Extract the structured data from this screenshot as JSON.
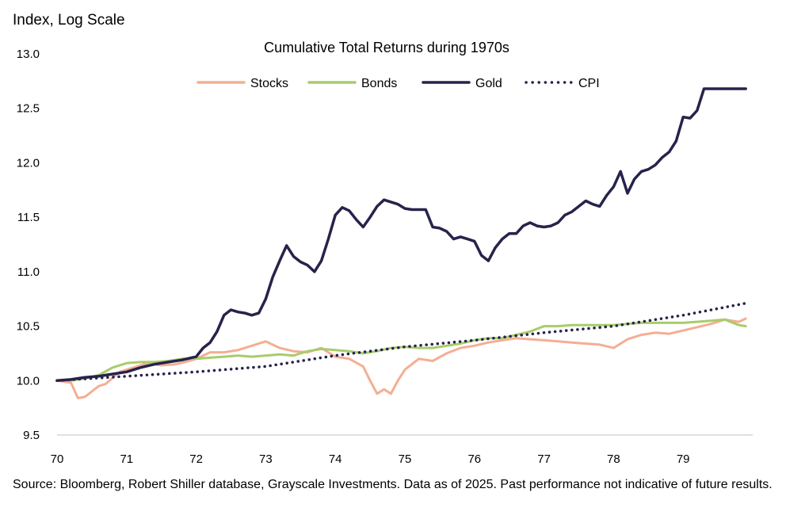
{
  "chart_data": {
    "type": "line",
    "title": "Cumulative Total Returns during 1970s",
    "ylabel": "Index, Log Scale",
    "xlabel": "",
    "log_scale": true,
    "ylim": [
      9.5,
      13.0
    ],
    "xlim": [
      1970,
      1980
    ],
    "y_ticks": [
      "9.5",
      "10.0",
      "10.5",
      "11.0",
      "11.5",
      "12.0",
      "12.5",
      "13.0"
    ],
    "x_ticks": [
      "70",
      "71",
      "72",
      "73",
      "74",
      "75",
      "76",
      "77",
      "78",
      "79"
    ],
    "grid": false,
    "legend": "top",
    "series": [
      {
        "name": "Stocks",
        "color": "#f4ae93",
        "style": "solid",
        "x": [
          1970.0,
          1970.1,
          1970.2,
          1970.3,
          1970.4,
          1970.5,
          1970.6,
          1970.7,
          1970.9,
          1971.0,
          1971.1,
          1971.3,
          1971.5,
          1971.7,
          1971.9,
          1972.0,
          1972.2,
          1972.4,
          1972.6,
          1972.8,
          1973.0,
          1973.2,
          1973.4,
          1973.6,
          1973.8,
          1974.0,
          1974.2,
          1974.4,
          1974.5,
          1974.6,
          1974.7,
          1974.8,
          1974.9,
          1975.0,
          1975.1,
          1975.2,
          1975.4,
          1975.6,
          1975.8,
          1976.0,
          1976.2,
          1976.4,
          1976.6,
          1976.8,
          1977.0,
          1977.2,
          1977.4,
          1977.6,
          1977.8,
          1978.0,
          1978.2,
          1978.4,
          1978.6,
          1978.8,
          1979.0,
          1979.2,
          1979.4,
          1979.6,
          1979.8,
          1979.9
        ],
        "values": [
          10.0,
          9.99,
          9.98,
          9.84,
          9.85,
          9.9,
          9.95,
          9.97,
          10.08,
          10.1,
          10.12,
          10.16,
          10.14,
          10.15,
          10.18,
          10.2,
          10.26,
          10.26,
          10.28,
          10.32,
          10.36,
          10.3,
          10.27,
          10.26,
          10.3,
          10.22,
          10.2,
          10.13,
          10.0,
          9.88,
          9.92,
          9.88,
          10.0,
          10.1,
          10.15,
          10.2,
          10.18,
          10.25,
          10.3,
          10.32,
          10.35,
          10.37,
          10.39,
          10.38,
          10.37,
          10.36,
          10.35,
          10.34,
          10.33,
          10.3,
          10.38,
          10.42,
          10.44,
          10.43,
          10.46,
          10.49,
          10.52,
          10.56,
          10.54,
          10.57
        ]
      },
      {
        "name": "Bonds",
        "color": "#a8cc6b",
        "style": "solid",
        "x": [
          1970.0,
          1970.2,
          1970.4,
          1970.6,
          1970.8,
          1971.0,
          1971.2,
          1971.4,
          1971.6,
          1971.8,
          1972.0,
          1972.2,
          1972.4,
          1972.6,
          1972.8,
          1973.0,
          1973.2,
          1973.4,
          1973.6,
          1973.8,
          1974.0,
          1974.2,
          1974.4,
          1974.6,
          1974.8,
          1975.0,
          1975.2,
          1975.4,
          1975.6,
          1975.8,
          1976.0,
          1976.2,
          1976.4,
          1976.6,
          1976.8,
          1977.0,
          1977.2,
          1977.4,
          1977.6,
          1977.8,
          1978.0,
          1978.2,
          1978.4,
          1978.6,
          1978.8,
          1979.0,
          1979.2,
          1979.4,
          1979.6,
          1979.8,
          1979.9
        ],
        "values": [
          10.0,
          10.0,
          10.02,
          10.05,
          10.12,
          10.16,
          10.17,
          10.17,
          10.18,
          10.2,
          10.2,
          10.21,
          10.22,
          10.23,
          10.22,
          10.23,
          10.24,
          10.23,
          10.27,
          10.29,
          10.28,
          10.27,
          10.25,
          10.27,
          10.3,
          10.31,
          10.3,
          10.3,
          10.32,
          10.34,
          10.37,
          10.39,
          10.39,
          10.42,
          10.45,
          10.5,
          10.5,
          10.51,
          10.51,
          10.51,
          10.51,
          10.52,
          10.53,
          10.53,
          10.53,
          10.53,
          10.54,
          10.55,
          10.56,
          10.51,
          10.5
        ]
      },
      {
        "name": "Gold",
        "color": "#26234b",
        "style": "solid",
        "x": [
          1970.0,
          1970.2,
          1970.4,
          1970.6,
          1970.8,
          1971.0,
          1971.2,
          1971.4,
          1971.6,
          1971.8,
          1972.0,
          1972.1,
          1972.2,
          1972.3,
          1972.4,
          1972.5,
          1972.6,
          1972.7,
          1972.8,
          1972.9,
          1973.0,
          1973.1,
          1973.2,
          1973.3,
          1973.4,
          1973.5,
          1973.6,
          1973.7,
          1973.8,
          1973.9,
          1974.0,
          1974.1,
          1974.2,
          1974.3,
          1974.4,
          1974.5,
          1974.6,
          1974.7,
          1974.8,
          1974.9,
          1975.0,
          1975.1,
          1975.2,
          1975.3,
          1975.4,
          1975.5,
          1975.6,
          1975.7,
          1975.8,
          1975.9,
          1976.0,
          1976.1,
          1976.2,
          1976.3,
          1976.4,
          1976.5,
          1976.6,
          1976.7,
          1976.8,
          1976.9,
          1977.0,
          1977.1,
          1977.2,
          1977.3,
          1977.4,
          1977.5,
          1977.6,
          1977.7,
          1977.8,
          1977.9,
          1978.0,
          1978.1,
          1978.2,
          1978.3,
          1978.4,
          1978.5,
          1978.6,
          1978.7,
          1978.8,
          1978.9,
          1979.0,
          1979.1,
          1979.2,
          1979.3,
          1979.4,
          1979.5,
          1979.6,
          1979.7,
          1979.8,
          1979.9
        ],
        "values": [
          10.0,
          10.01,
          10.03,
          10.04,
          10.06,
          10.08,
          10.12,
          10.15,
          10.17,
          10.19,
          10.22,
          10.3,
          10.35,
          10.45,
          10.6,
          10.65,
          10.63,
          10.62,
          10.6,
          10.62,
          10.75,
          10.95,
          11.1,
          11.24,
          11.14,
          11.09,
          11.06,
          11.0,
          11.1,
          11.3,
          11.52,
          11.59,
          11.56,
          11.48,
          11.41,
          11.5,
          11.6,
          11.66,
          11.64,
          11.62,
          11.58,
          11.57,
          11.57,
          11.57,
          11.41,
          11.4,
          11.37,
          11.3,
          11.32,
          11.3,
          11.28,
          11.15,
          11.1,
          11.22,
          11.3,
          11.35,
          11.35,
          11.42,
          11.45,
          11.42,
          11.41,
          11.42,
          11.45,
          11.52,
          11.55,
          11.6,
          11.65,
          11.62,
          11.6,
          11.7,
          11.78,
          11.92,
          11.72,
          11.85,
          11.92,
          11.94,
          11.98,
          12.05,
          12.1,
          12.2,
          12.42,
          12.41,
          12.48,
          12.68,
          12.68,
          12.68,
          12.68,
          12.68,
          12.68,
          12.68
        ]
      },
      {
        "name": "CPI",
        "color": "#26234b",
        "style": "dotted",
        "x": [
          1970.0,
          1971.0,
          1972.0,
          1973.0,
          1974.0,
          1975.0,
          1976.0,
          1977.0,
          1978.0,
          1979.0,
          1979.9
        ],
        "values": [
          10.0,
          10.04,
          10.08,
          10.13,
          10.23,
          10.31,
          10.37,
          10.44,
          10.5,
          10.6,
          10.71
        ]
      }
    ]
  },
  "footer": {
    "source": "Source: Bloomberg, Robert Shiller database, Grayscale Investments. Data as of 2025. Past performance not indicative of future results."
  }
}
